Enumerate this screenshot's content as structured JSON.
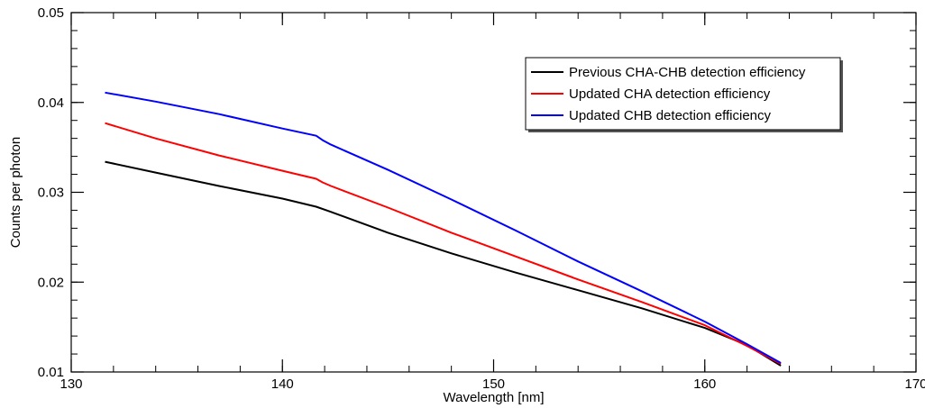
{
  "chart_data": {
    "type": "line",
    "title": "",
    "xlabel": "Wavelength [nm]",
    "ylabel": "Counts per photon",
    "xlim": [
      130,
      170
    ],
    "ylim": [
      0.01,
      0.05
    ],
    "x_ticks": [
      {
        "value": 130,
        "label": "130"
      },
      {
        "value": 140,
        "label": "140"
      },
      {
        "value": 150,
        "label": "150"
      },
      {
        "value": 160,
        "label": "160"
      },
      {
        "value": 170,
        "label": "170"
      }
    ],
    "y_ticks": [
      {
        "value": 0.01,
        "label": "0.01"
      },
      {
        "value": 0.02,
        "label": "0.02"
      },
      {
        "value": 0.03,
        "label": "0.03"
      },
      {
        "value": 0.04,
        "label": "0.04"
      },
      {
        "value": 0.05,
        "label": "0.05"
      }
    ],
    "x_minor_step": 2,
    "y_minor_step": 0.002,
    "grid": false,
    "legend_position": "top-right",
    "series": [
      {
        "name": "Previous CHA-CHB detection efficiency",
        "color": "#000000",
        "x": [
          131.6,
          134,
          137,
          140,
          141.6,
          142.2,
          145,
          148,
          151,
          154,
          157,
          160,
          162,
          163.6
        ],
        "y": [
          0.0334,
          0.0322,
          0.0307,
          0.0293,
          0.0284,
          0.0279,
          0.0255,
          0.0232,
          0.0211,
          0.0191,
          0.0171,
          0.0149,
          0.013,
          0.0107
        ]
      },
      {
        "name": "Updated CHA detection efficiency",
        "color": "#ff0000",
        "x": [
          131.6,
          134,
          137,
          140,
          141.6,
          141.9,
          142.3,
          145,
          148,
          151,
          154,
          157,
          160,
          162,
          163.6
        ],
        "y": [
          0.0377,
          0.036,
          0.0341,
          0.0324,
          0.0315,
          0.0311,
          0.0307,
          0.0283,
          0.0255,
          0.0229,
          0.0203,
          0.0178,
          0.0152,
          0.0129,
          0.0109
        ]
      },
      {
        "name": "Updated CHB detection efficiency",
        "color": "#0000ff",
        "x": [
          131.6,
          134,
          137,
          140,
          141.6,
          141.9,
          142.3,
          145,
          148,
          151,
          154,
          157,
          160,
          162,
          163.6
        ],
        "y": [
          0.0411,
          0.0401,
          0.0387,
          0.0371,
          0.0363,
          0.0358,
          0.0353,
          0.0325,
          0.0292,
          0.0258,
          0.0223,
          0.019,
          0.0156,
          0.0131,
          0.011
        ]
      }
    ]
  }
}
